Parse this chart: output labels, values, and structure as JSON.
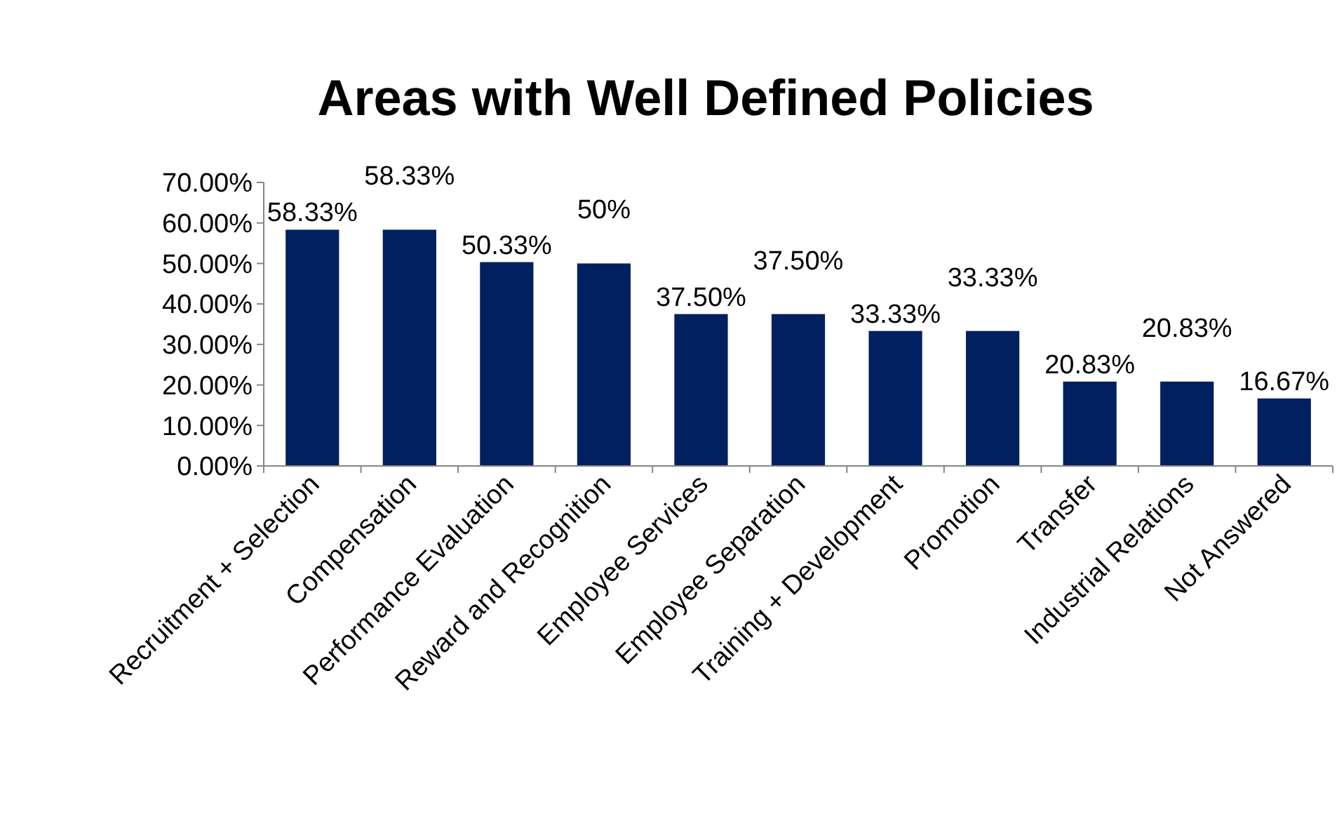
{
  "chart_data": {
    "type": "bar",
    "title": "Areas with Well Defined Policies",
    "categories": [
      "Recruitment + Selection",
      "Compensation",
      "Performance Evaluation",
      "Reward and Recognition",
      "Employee Services",
      "Employee Separation",
      "Training + Development",
      "Promotion",
      "Transfer",
      "Industrial Relations",
      "Not Answered"
    ],
    "values": [
      58.33,
      58.33,
      50.33,
      50,
      37.5,
      37.5,
      33.33,
      33.33,
      20.83,
      20.83,
      16.67
    ],
    "value_labels": [
      "58.33%",
      "58.33%",
      "50.33%",
      "50%",
      "37.50%",
      "37.50%",
      "33.33%",
      "33.33%",
      "20.83%",
      "20.83%",
      "16.67%"
    ],
    "color": "#002060",
    "ylim": [
      0,
      70
    ],
    "yticks": [
      {
        "value": 0,
        "label": "0.00%"
      },
      {
        "value": 10,
        "label": "10.00%"
      },
      {
        "value": 20,
        "label": "20.00%"
      },
      {
        "value": 30,
        "label": "30.00%"
      },
      {
        "value": 40,
        "label": "40.00%"
      },
      {
        "value": 50,
        "label": "50.00%"
      },
      {
        "value": 60,
        "label": "60.00%"
      },
      {
        "value": 70,
        "label": "70.00%"
      }
    ],
    "grid": false
  }
}
